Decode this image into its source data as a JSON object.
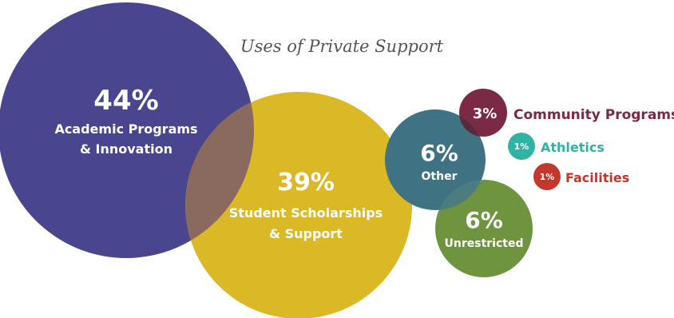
{
  "chart_data": {
    "type": "bubble",
    "title": "Uses of Private Support",
    "series": [
      {
        "name": "Academic Programs & Innovation",
        "label_lines": [
          "Academic Programs",
          "& Innovation"
        ],
        "value": 44,
        "value_label": "44%",
        "color": "#4a458f"
      },
      {
        "name": "Student Scholarships & Support",
        "label_lines": [
          "Student Scholarships",
          "& Support"
        ],
        "value": 39,
        "value_label": "39%",
        "color": "#dbb826"
      },
      {
        "name": "Other",
        "label_lines": [
          "Other"
        ],
        "value": 6,
        "value_label": "6%",
        "color": "#3f7282"
      },
      {
        "name": "Unrestricted",
        "label_lines": [
          "Unrestricted"
        ],
        "value": 6,
        "value_label": "6%",
        "color": "#6e9440"
      },
      {
        "name": "Community Programs",
        "label_lines": [
          "Community Programs"
        ],
        "value": 3,
        "value_label": "3%",
        "color": "#7a2a45"
      },
      {
        "name": "Athletics",
        "label_lines": [
          "Athletics"
        ],
        "value": 1,
        "value_label": "1%",
        "color": "#2fb3a3"
      },
      {
        "name": "Facilities",
        "label_lines": [
          "Facilities"
        ],
        "value": 1,
        "value_label": "1%",
        "color": "#c4372d"
      }
    ],
    "colors": {
      "overlap_academic_scholarship": "#8a6a5e",
      "overlap_other_unrestricted": "#4d7c80",
      "overlap_other_community": "#5a2a3a"
    }
  }
}
